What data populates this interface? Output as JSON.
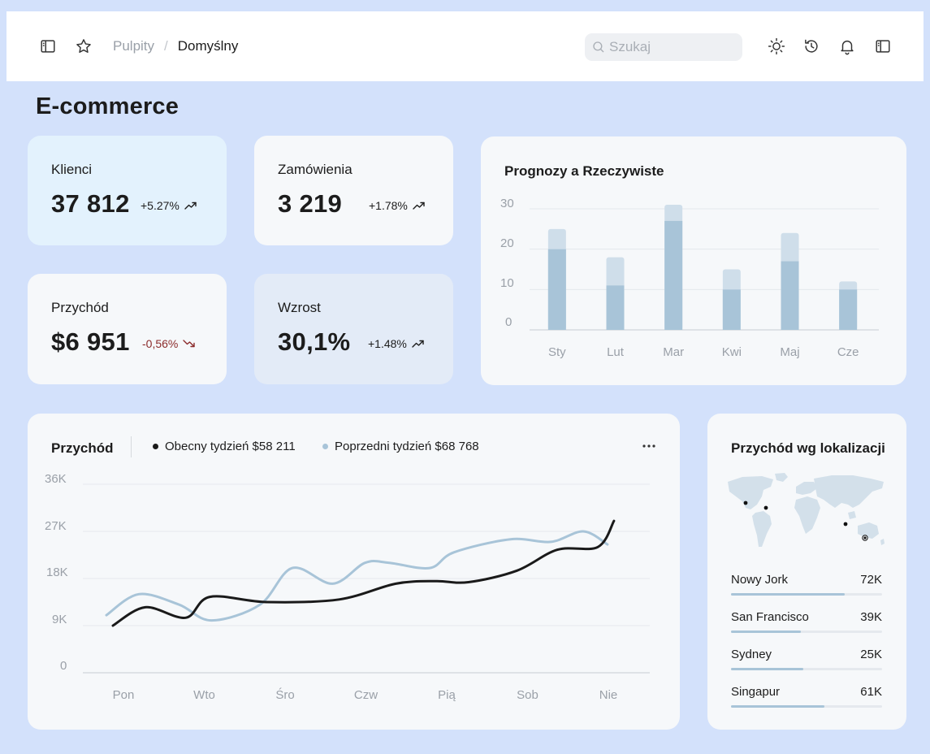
{
  "topbar": {
    "breadcrumb_parent": "Pulpity",
    "breadcrumb_sep": "/",
    "breadcrumb_current": "Domyślny",
    "search_placeholder": "Szukaj",
    "icons": [
      "sidebar-toggle-icon",
      "star-icon",
      "search-icon",
      "sun-icon",
      "history-icon",
      "bell-icon",
      "panel-icon"
    ]
  },
  "page": {
    "title": "E-commerce"
  },
  "kpis": [
    {
      "label": "Klienci",
      "value": "37 812",
      "change": "+5.27%",
      "trend": "up"
    },
    {
      "label": "Zamówienia",
      "value": "3 219",
      "change": "+1.78%",
      "trend": "up"
    },
    {
      "label": "Przychód",
      "value": "$6 951",
      "change": "-0,56%",
      "trend": "down"
    },
    {
      "label": "Wzrost",
      "value": "30,1%",
      "change": "+1.48%",
      "trend": "up"
    }
  ],
  "forecast": {
    "title": "Prognozy a Rzeczywiste",
    "y_ticks": [
      "30",
      "20",
      "10",
      "0"
    ]
  },
  "revenue": {
    "title": "Przychód",
    "legend_current": "Obecny tydzień $58 211",
    "legend_previous": "Poprzedni tydzień $68 768",
    "more": "···",
    "y_ticks": [
      "36K",
      "27K",
      "18K",
      "9K",
      "0"
    ]
  },
  "locations": {
    "title": "Przychód wg lokalizacji",
    "items": [
      {
        "name": "Nowy Jork",
        "value": "72K",
        "share": 0.75
      },
      {
        "name": "San Francisco",
        "value": "39K",
        "share": 0.46
      },
      {
        "name": "Sydney",
        "value": "25K",
        "share": 0.48
      },
      {
        "name": "Singapur",
        "value": "61K",
        "share": 0.62
      }
    ]
  },
  "colors": {
    "page_bg": "#d3e1fb",
    "card_bg": "#f6f8fa",
    "card_highlight": "#e3f2fd",
    "card_alt": "#e3ebf7",
    "bar_actual": "#a8c4d8",
    "bar_projection": "#cfdeea",
    "line_current": "#1a1a1a",
    "line_previous": "#a8c4d8",
    "negative": "#8b2b2b"
  },
  "chart_data": [
    {
      "type": "bar",
      "title": "Prognozy a Rzeczywiste",
      "categories": [
        "Sty",
        "Lut",
        "Mar",
        "Kwi",
        "Maj",
        "Cze"
      ],
      "series": [
        {
          "values": [
            20,
            11,
            27,
            10,
            17,
            10
          ]
        },
        {
          "values": [
            25,
            18,
            31,
            15,
            24,
            12
          ]
        }
      ],
      "ylim": [
        0,
        30
      ],
      "stacked": "overlay",
      "grid": true
    },
    {
      "type": "line",
      "title": "Przychód",
      "categories": [
        "Pon",
        "Wto",
        "Śro",
        "Czw",
        "Pią",
        "Sob",
        "Nie"
      ],
      "series": [
        {
          "name": "Obecny tydzień $58 211",
          "x": [
            0,
            0.4,
            0.9,
            1.2,
            1.9,
            2.8,
            3.5,
            4.0,
            4.4,
            5.0,
            5.5,
            6.0,
            6.2
          ],
          "values": [
            9,
            12.5,
            10.5,
            14.5,
            13.5,
            14.0,
            17.0,
            17.5,
            17.3,
            19.5,
            23.5,
            24.0,
            29.0
          ]
        },
        {
          "name": "Poprzedni tydzień $68 768",
          "x": [
            0,
            0.4,
            0.9,
            1.3,
            1.9,
            2.3,
            2.8,
            3.2,
            3.5,
            4.0,
            4.3,
            5.0,
            5.5,
            5.9,
            6.2
          ],
          "values": [
            11,
            15,
            13,
            10,
            13,
            20,
            17,
            21,
            21,
            20,
            23,
            25.5,
            25,
            27,
            24.5
          ]
        }
      ],
      "ylim": [
        0,
        36
      ],
      "grid": true,
      "legend": "top"
    }
  ]
}
